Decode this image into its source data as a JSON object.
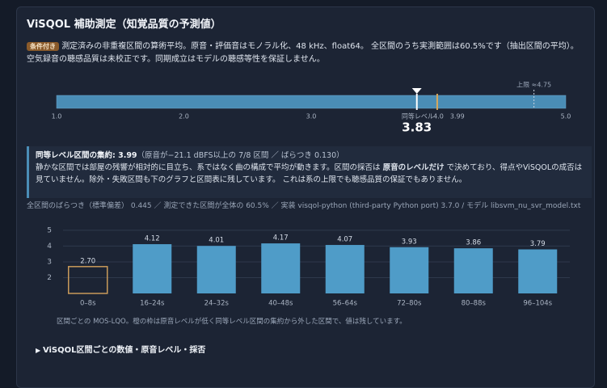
{
  "header": {
    "title": "ViSQOL 補助測定（知覚品質の予測値）",
    "badge": "条件付き",
    "note": "測定済みの非重複区間の算術平均。原音・評価音はモノラル化、48 kHz、float64。 全区間のうち実測範囲は60.5%です（抽出区間の平均）。空気録音の聴感品質は未校正です。同期成立はモデルの聴感等性を保証しません。"
  },
  "info": {
    "title": "同等レベル区間の集約: 3.99",
    "detail": "（原音が−21.1 dBFS以上の 7/8 区間 ／ ばらつき 0.130）",
    "body_1": "静かな区間では部屋の残響が相対的に目立ち、系ではなく曲の構成で平均が動きます。区間の採否は ",
    "body_bold": "原音のレベルだけ",
    "body_2": " で決めており、得点やViSQOLの成否は見ていません。除外・失敗区間も下のグラフと区間表に残しています。 これは系の上限でも聴感品質の保証でもありません。"
  },
  "stats": "全区間のばらつき（標準偏差） 0.445 ／ 測定できた区間が全体の 60.5% ／ 実装 visqol-python (third-party Python port) 3.7.0 / モデル libsvm_nu_svr_model.txt",
  "chart_data": [
    {
      "type": "gauge",
      "xlim": [
        1,
        5
      ],
      "xticks": [
        {
          "value": 1,
          "label": "1.0"
        },
        {
          "value": 2,
          "label": "2.0"
        },
        {
          "value": 3,
          "label": "3.0"
        },
        {
          "value": 4,
          "label": "4.0"
        },
        {
          "value": 5,
          "label": "5.0"
        }
      ],
      "value": 3.83,
      "color": "#4a8db6",
      "reference": {
        "label": "同等レベル",
        "value": 3.99,
        "color": "#d9a85a"
      },
      "ceiling": {
        "value": 4.75,
        "label": "上限 ≈4.75"
      }
    },
    {
      "type": "bar",
      "categories": [
        "0–8s",
        "16–24s",
        "24–32s",
        "40–48s",
        "56–64s",
        "72–80s",
        "80–88s",
        "96–104s"
      ],
      "values": [
        2.7,
        4.12,
        4.01,
        4.17,
        4.07,
        3.93,
        3.86,
        3.79
      ],
      "value_labels": [
        "2.70",
        "4.12",
        "4.01",
        "4.17",
        "4.07",
        "3.93",
        "3.86",
        "3.79"
      ],
      "colors": [
        "#c89a5a",
        "#4f9cc8",
        "#4f9cc8",
        "#4f9cc8",
        "#4f9cc8",
        "#4f9cc8",
        "#4f9cc8",
        "#4f9cc8"
      ],
      "outlined": [
        true,
        false,
        false,
        false,
        false,
        false,
        false,
        false
      ],
      "ylim": [
        1,
        5.25
      ],
      "yticks": [
        2,
        3,
        4,
        5
      ],
      "grid": true,
      "caption": "区間ごとの MOS-LQO。橙の枠は原音レベルが低く同等レベル区間の集約から外した区間で、値は残しています。"
    }
  ],
  "details": "ViSQOL区間ごとの数値・原音レベル・採否"
}
